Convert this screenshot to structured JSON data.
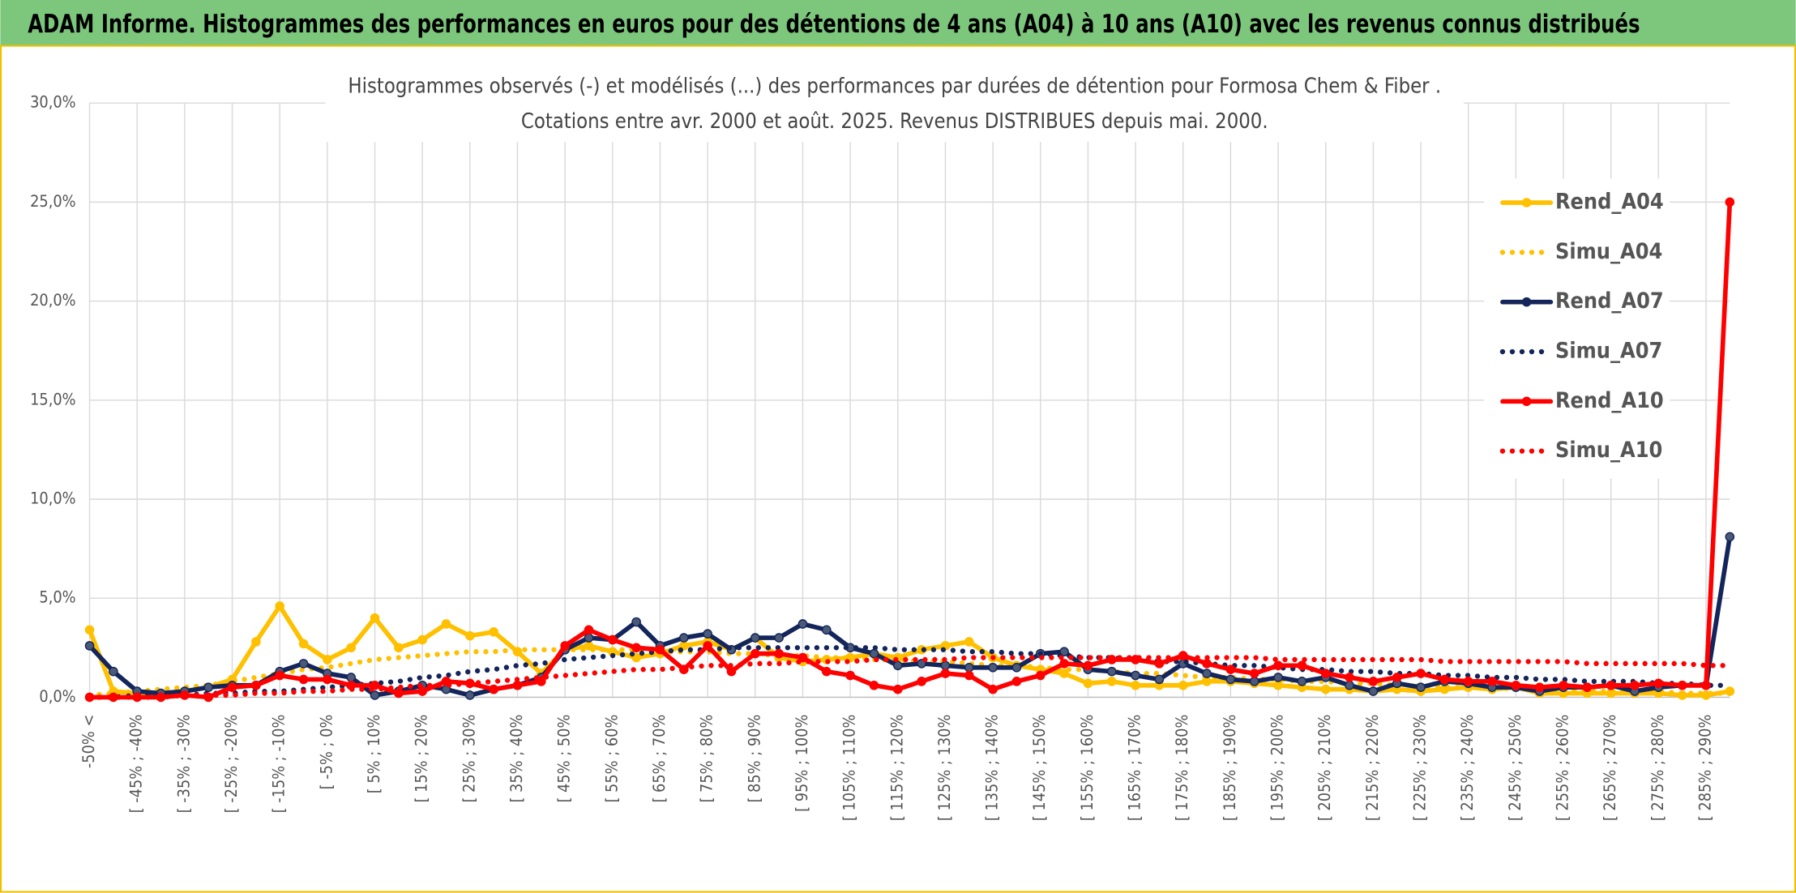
{
  "header": {
    "title": "ADAM Informe. Histogrammes des performances en euros pour des détentions de 4 ans (A04) à 10 ans (A10) avec les revenus connus distribués"
  },
  "chart_data": {
    "type": "line",
    "title": "Histogrammes observés (-) et modélisés (...) des performances par durées de détention pour Formosa Chem & Fiber .",
    "subtitle": "Cotations entre avr. 2000 et août. 2025. Revenus DISTRIBUES depuis mai. 2000.",
    "categories": [
      "-50% <",
      null,
      "[ -45% ; -40%",
      null,
      "[ -35% ; -30%",
      null,
      "[ -25% ; -20%",
      null,
      "[ -15% ; -10%",
      null,
      "[ -5% ; 0%",
      null,
      "[ 5% ; 10%",
      null,
      "[ 15% ; 20%",
      null,
      "[ 25% ; 30%",
      null,
      "[ 35% ; 40%",
      null,
      "[ 45% ; 50%",
      null,
      "[ 55% ; 60%",
      null,
      "[ 65% ; 70%",
      null,
      "[ 75% ; 80%",
      null,
      "[ 85% ; 90%",
      null,
      "[ 95% ; 100%",
      null,
      "[ 105% ; 110%",
      null,
      "[ 115% ; 120%",
      null,
      "[ 125% ; 130%",
      null,
      "[ 135% ; 140%",
      null,
      "[ 145% ; 150%",
      null,
      "[ 155% ; 160%",
      null,
      "[ 165% ; 170%",
      null,
      "[ 175% ; 180%",
      null,
      "[ 185% ; 190%",
      null,
      "[ 195% ; 200%",
      null,
      "[ 205% ; 210%",
      null,
      "[ 215% ; 220%",
      null,
      "[ 225% ; 230%",
      null,
      "[ 235% ; 240%",
      null,
      "[ 245% ; 250%",
      null,
      "[ 255% ; 260%",
      null,
      "[ 265% ; 270%",
      null,
      "[ 275% ; 280%",
      null,
      "[ 285% ; 290%",
      null
    ],
    "ylim": [
      0,
      30
    ],
    "yticks": [
      {
        "value": 0,
        "label": "0,0%"
      },
      {
        "value": 5,
        "label": "5,0%"
      },
      {
        "value": 10,
        "label": "10,0%"
      },
      {
        "value": 15,
        "label": "15,0%"
      },
      {
        "value": 20,
        "label": "20,0%"
      },
      {
        "value": 25,
        "label": "25,0%"
      },
      {
        "value": 30,
        "label": "30,0%"
      }
    ],
    "grid": true,
    "legend": "right",
    "series": [
      {
        "name": "Rend_A04",
        "color": "#FFC000",
        "style": "solid",
        "markers": true,
        "values": [
          3.4,
          0.3,
          0.2,
          0.2,
          0.3,
          0.5,
          0.9,
          2.8,
          4.6,
          2.7,
          1.9,
          2.5,
          4.0,
          2.5,
          2.9,
          3.7,
          3.1,
          3.3,
          2.3,
          1.2,
          2.4,
          2.6,
          2.3,
          2.0,
          2.2,
          2.6,
          2.8,
          2.4,
          3.0,
          2.0,
          1.8,
          1.9,
          2.0,
          2.2,
          2.0,
          2.4,
          2.6,
          2.8,
          2.0,
          1.6,
          1.4,
          1.2,
          0.7,
          0.8,
          0.6,
          0.6,
          0.6,
          0.8,
          0.8,
          0.7,
          0.6,
          0.5,
          0.4,
          0.4,
          0.3,
          0.4,
          0.3,
          0.4,
          0.5,
          0.4,
          0.5,
          0.2,
          0.2,
          0.2,
          0.2,
          0.2,
          0.2,
          0.1,
          0.1,
          0.3
        ]
      },
      {
        "name": "Simu_A04",
        "color": "#FFC000",
        "style": "dotted",
        "markers": false,
        "values": [
          0.1,
          0.2,
          0.3,
          0.4,
          0.5,
          0.6,
          0.8,
          1.0,
          1.2,
          1.4,
          1.5,
          1.7,
          1.9,
          2.0,
          2.1,
          2.2,
          2.3,
          2.3,
          2.4,
          2.4,
          2.4,
          2.4,
          2.4,
          2.4,
          2.3,
          2.3,
          2.3,
          2.2,
          2.2,
          2.1,
          2.1,
          2.0,
          2.0,
          1.9,
          1.9,
          1.8,
          1.8,
          1.7,
          1.6,
          1.6,
          1.5,
          1.4,
          1.4,
          1.3,
          1.2,
          1.2,
          1.1,
          1.0,
          1.0,
          0.9,
          0.9,
          0.8,
          0.8,
          0.7,
          0.7,
          0.6,
          0.6,
          0.5,
          0.5,
          0.5,
          0.4,
          0.4,
          0.4,
          0.3,
          0.3,
          0.3,
          0.3,
          0.2,
          0.2,
          0.2
        ]
      },
      {
        "name": "Rend_A07",
        "color": "#13255A",
        "style": "solid",
        "markers": true,
        "values": [
          2.6,
          1.3,
          0.3,
          0.2,
          0.3,
          0.5,
          0.6,
          0.6,
          1.3,
          1.7,
          1.2,
          1.0,
          0.1,
          0.3,
          0.6,
          0.4,
          0.1,
          0.4,
          0.6,
          1.0,
          2.4,
          3.0,
          2.9,
          3.8,
          2.6,
          3.0,
          3.2,
          2.4,
          3.0,
          3.0,
          3.7,
          3.4,
          2.5,
          2.2,
          1.6,
          1.7,
          1.6,
          1.5,
          1.5,
          1.5,
          2.2,
          2.3,
          1.4,
          1.3,
          1.1,
          0.9,
          1.7,
          1.2,
          0.9,
          0.8,
          1.0,
          0.8,
          1.0,
          0.6,
          0.3,
          0.7,
          0.5,
          0.8,
          0.7,
          0.5,
          0.5,
          0.3,
          0.5,
          0.5,
          0.6,
          0.3,
          0.5,
          0.6,
          0.6,
          8.1
        ]
      },
      {
        "name": "Simu_A07",
        "color": "#13255A",
        "style": "dotted",
        "markers": false,
        "values": [
          0.0,
          0.0,
          0.1,
          0.1,
          0.1,
          0.2,
          0.2,
          0.3,
          0.3,
          0.4,
          0.5,
          0.6,
          0.7,
          0.8,
          1.0,
          1.1,
          1.3,
          1.4,
          1.6,
          1.7,
          1.9,
          2.0,
          2.1,
          2.2,
          2.3,
          2.4,
          2.4,
          2.5,
          2.5,
          2.5,
          2.5,
          2.5,
          2.5,
          2.5,
          2.4,
          2.4,
          2.4,
          2.3,
          2.3,
          2.2,
          2.2,
          2.1,
          2.0,
          2.0,
          1.9,
          1.8,
          1.8,
          1.7,
          1.6,
          1.6,
          1.5,
          1.4,
          1.4,
          1.3,
          1.3,
          1.2,
          1.2,
          1.1,
          1.1,
          1.0,
          1.0,
          0.9,
          0.9,
          0.8,
          0.8,
          0.8,
          0.7,
          0.7,
          0.6,
          0.6
        ]
      },
      {
        "name": "Rend_A10",
        "color": "#FF0000",
        "style": "solid",
        "markers": true,
        "values": [
          0.0,
          0.0,
          0.0,
          0.0,
          0.1,
          0.0,
          0.5,
          0.6,
          1.1,
          0.9,
          0.9,
          0.6,
          0.6,
          0.2,
          0.3,
          0.8,
          0.7,
          0.4,
          0.6,
          0.8,
          2.6,
          3.4,
          2.9,
          2.5,
          2.4,
          1.4,
          2.6,
          1.3,
          2.2,
          2.2,
          2.0,
          1.3,
          1.1,
          0.6,
          0.4,
          0.8,
          1.2,
          1.1,
          0.4,
          0.8,
          1.1,
          1.7,
          1.6,
          1.9,
          1.9,
          1.7,
          2.1,
          1.7,
          1.4,
          1.2,
          1.6,
          1.6,
          1.2,
          1.0,
          0.8,
          1.0,
          1.2,
          0.9,
          0.8,
          0.8,
          0.6,
          0.5,
          0.6,
          0.5,
          0.6,
          0.6,
          0.7,
          0.6,
          0.6,
          25.0
        ]
      },
      {
        "name": "Simu_A10",
        "color": "#FF0000",
        "style": "dotted",
        "markers": false,
        "values": [
          0.0,
          0.0,
          0.0,
          0.0,
          0.1,
          0.1,
          0.1,
          0.2,
          0.2,
          0.3,
          0.3,
          0.4,
          0.4,
          0.5,
          0.6,
          0.6,
          0.7,
          0.8,
          0.9,
          1.0,
          1.1,
          1.2,
          1.3,
          1.4,
          1.4,
          1.5,
          1.6,
          1.6,
          1.7,
          1.7,
          1.8,
          1.8,
          1.8,
          1.9,
          1.9,
          1.9,
          1.9,
          2.0,
          2.0,
          2.0,
          2.0,
          2.0,
          2.0,
          2.0,
          2.0,
          2.0,
          2.0,
          2.0,
          2.0,
          2.0,
          1.9,
          1.9,
          1.9,
          1.9,
          1.9,
          1.9,
          1.9,
          1.8,
          1.8,
          1.8,
          1.8,
          1.8,
          1.8,
          1.7,
          1.7,
          1.7,
          1.7,
          1.7,
          1.6,
          1.6
        ]
      }
    ]
  }
}
